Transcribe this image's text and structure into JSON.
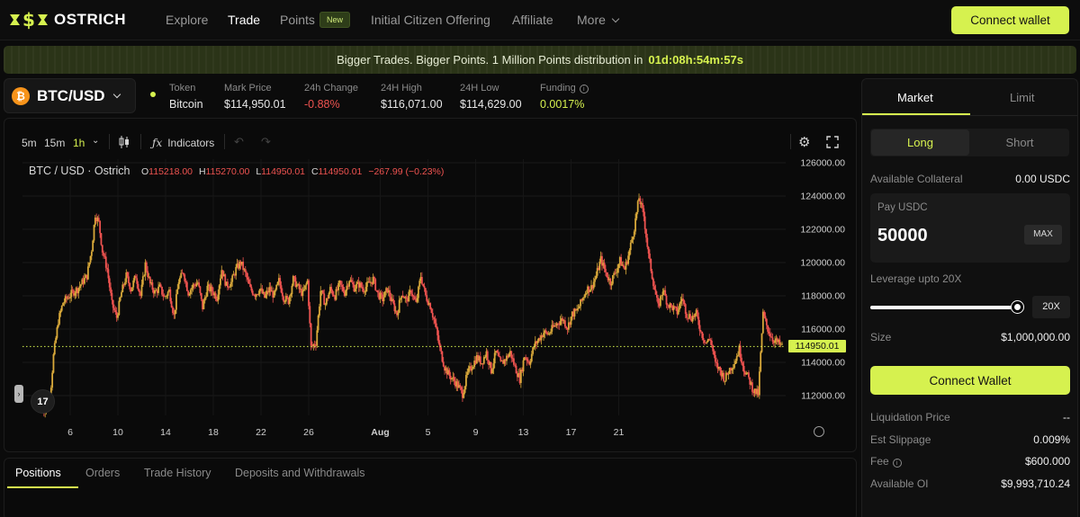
{
  "brand": {
    "name": "OSTRICH"
  },
  "nav": {
    "items": [
      {
        "label": "Explore"
      },
      {
        "label": "Trade"
      },
      {
        "label": "Points"
      },
      {
        "label": "Initial Citizen Offering"
      },
      {
        "label": "Affiliate"
      },
      {
        "label": "More"
      }
    ],
    "points_badge": "New",
    "connect_label": "Connect wallet"
  },
  "banner": {
    "text": "Bigger Trades. Bigger Points. 1 Million Points distribution in",
    "countdown": "01d:08h:54m:57s"
  },
  "market": {
    "pair": "BTC/USD",
    "coin_glyph": "₿",
    "stats": [
      {
        "label": "Token",
        "value": "Bitcoin"
      },
      {
        "label": "Mark Price",
        "value": "$114,950.01"
      },
      {
        "label": "24h Change",
        "value": "-0.88%"
      },
      {
        "label": "24H High",
        "value": "$116,071.00"
      },
      {
        "label": "24H Low",
        "value": "$114,629.00"
      },
      {
        "label": "Funding",
        "value": "0.0017%"
      }
    ]
  },
  "chart_toolbar": {
    "timeframes": [
      "5m",
      "15m",
      "1h"
    ],
    "active_timeframe": "1h",
    "indicators_label": "Indicators",
    "icons": [
      "candles-icon",
      "undo-icon",
      "redo-icon",
      "settings-icon",
      "fullscreen-icon"
    ]
  },
  "chart_legend": {
    "symbol": "BTC / USD · Ostrich",
    "o_label": "O",
    "o": "115218.00",
    "h_label": "H",
    "h": "115270.00",
    "l_label": "L",
    "l": "114950.01",
    "c_label": "C",
    "c": "114950.01",
    "change": "−267.99 (−0.23%)"
  },
  "chart_data": {
    "type": "candlestick",
    "x_tick_labels": [
      "6",
      "10",
      "14",
      "18",
      "22",
      "26",
      "Aug",
      "5",
      "9",
      "13",
      "17",
      "21"
    ],
    "y_tick_labels": [
      "126000.00",
      "124000.00",
      "122000.00",
      "120000.00",
      "118000.00",
      "116000.00",
      "114000.00",
      "112000.00"
    ],
    "ylim": [
      110000,
      127000
    ],
    "last_price_label": "114950.01",
    "last_price": 114950.01,
    "up_color": "#d9a93a",
    "down_color": "#ef5350",
    "close_path": [
      [
        3.6,
        111300
      ],
      [
        4.0,
        111000
      ],
      [
        4.3,
        111800
      ],
      [
        4.6,
        114400
      ],
      [
        5.0,
        116500
      ],
      [
        5.4,
        117600
      ],
      [
        5.8,
        117900
      ],
      [
        6.2,
        118200
      ],
      [
        6.6,
        118400
      ],
      [
        7.0,
        118800
      ],
      [
        7.4,
        119200
      ],
      [
        7.8,
        120800
      ],
      [
        8.1,
        122900
      ],
      [
        8.4,
        122400
      ],
      [
        8.7,
        120700
      ],
      [
        9.1,
        119600
      ],
      [
        9.5,
        117500
      ],
      [
        9.9,
        116700
      ],
      [
        10.3,
        118200
      ],
      [
        10.7,
        119200
      ],
      [
        11.1,
        118400
      ],
      [
        11.5,
        119200
      ],
      [
        11.9,
        118000
      ],
      [
        12.3,
        119900
      ],
      [
        12.7,
        118700
      ],
      [
        13.1,
        118200
      ],
      [
        13.5,
        118500
      ],
      [
        13.9,
        117900
      ],
      [
        14.3,
        118300
      ],
      [
        14.7,
        116800
      ],
      [
        15.1,
        118900
      ],
      [
        15.5,
        119400
      ],
      [
        15.9,
        118200
      ],
      [
        16.3,
        118600
      ],
      [
        16.7,
        118800
      ],
      [
        17.1,
        117300
      ],
      [
        17.5,
        118500
      ],
      [
        17.9,
        118300
      ],
      [
        18.3,
        117900
      ],
      [
        18.7,
        119600
      ],
      [
        19.1,
        118600
      ],
      [
        19.5,
        118800
      ],
      [
        19.9,
        119600
      ],
      [
        20.3,
        120000
      ],
      [
        20.7,
        119300
      ],
      [
        21.1,
        118400
      ],
      [
        21.5,
        118100
      ],
      [
        21.9,
        118400
      ],
      [
        22.3,
        117900
      ],
      [
        22.7,
        118400
      ],
      [
        23.1,
        118000
      ],
      [
        23.5,
        118900
      ],
      [
        23.9,
        117900
      ],
      [
        24.3,
        117700
      ],
      [
        24.7,
        119000
      ],
      [
        25.1,
        118500
      ],
      [
        25.5,
        118100
      ],
      [
        25.9,
        118900
      ],
      [
        26.2,
        114900
      ],
      [
        26.6,
        115200
      ],
      [
        27.0,
        118300
      ],
      [
        27.4,
        117500
      ],
      [
        27.8,
        118400
      ],
      [
        28.2,
        118000
      ],
      [
        28.6,
        118700
      ],
      [
        29.0,
        118200
      ],
      [
        29.4,
        119000
      ],
      [
        29.8,
        118500
      ],
      [
        30.2,
        118700
      ],
      [
        30.6,
        118400
      ],
      [
        31.0,
        118700
      ],
      [
        31.4,
        119000
      ],
      [
        31.8,
        118100
      ],
      [
        32.2,
        117800
      ],
      [
        32.6,
        118400
      ],
      [
        33.0,
        117600
      ],
      [
        33.4,
        116900
      ],
      [
        33.8,
        118200
      ],
      [
        34.2,
        117700
      ],
      [
        34.6,
        118300
      ],
      [
        35.0,
        117500
      ],
      [
        35.4,
        119200
      ],
      [
        35.8,
        118000
      ],
      [
        36.2,
        117400
      ],
      [
        36.6,
        116300
      ],
      [
        37.0,
        114800
      ],
      [
        37.4,
        113700
      ],
      [
        37.8,
        113200
      ],
      [
        38.2,
        112900
      ],
      [
        38.6,
        112500
      ],
      [
        38.9,
        112100
      ],
      [
        39.3,
        113300
      ],
      [
        39.7,
        113800
      ],
      [
        40.1,
        114300
      ],
      [
        40.5,
        114000
      ],
      [
        40.9,
        114600
      ],
      [
        41.3,
        113500
      ],
      [
        41.7,
        114600
      ],
      [
        42.1,
        113900
      ],
      [
        42.5,
        114200
      ],
      [
        42.9,
        114600
      ],
      [
        43.3,
        113700
      ],
      [
        43.7,
        113000
      ],
      [
        44.1,
        114400
      ],
      [
        44.5,
        114000
      ],
      [
        44.9,
        115000
      ],
      [
        45.3,
        115400
      ],
      [
        45.7,
        115800
      ],
      [
        46.1,
        115700
      ],
      [
        46.5,
        116100
      ],
      [
        46.9,
        116400
      ],
      [
        47.3,
        116600
      ],
      [
        47.7,
        116100
      ],
      [
        48.1,
        116900
      ],
      [
        48.5,
        117100
      ],
      [
        48.9,
        117700
      ],
      [
        49.3,
        118400
      ],
      [
        49.7,
        118500
      ],
      [
        50.1,
        119200
      ],
      [
        50.5,
        120200
      ],
      [
        50.9,
        119400
      ],
      [
        51.3,
        118800
      ],
      [
        51.7,
        119400
      ],
      [
        52.1,
        120100
      ],
      [
        52.5,
        119600
      ],
      [
        52.9,
        120700
      ],
      [
        53.3,
        122100
      ],
      [
        53.7,
        123900
      ],
      [
        54.1,
        122800
      ],
      [
        54.5,
        120400
      ],
      [
        54.9,
        118800
      ],
      [
        55.3,
        117300
      ],
      [
        55.7,
        118400
      ],
      [
        56.1,
        117500
      ],
      [
        56.5,
        117300
      ],
      [
        56.9,
        117000
      ],
      [
        57.3,
        117900
      ],
      [
        57.7,
        116900
      ],
      [
        58.1,
        116700
      ],
      [
        58.5,
        116900
      ],
      [
        58.9,
        115800
      ],
      [
        59.3,
        115200
      ],
      [
        59.7,
        115400
      ],
      [
        60.1,
        113900
      ],
      [
        60.5,
        113500
      ],
      [
        60.9,
        113000
      ],
      [
        61.3,
        113600
      ],
      [
        61.7,
        114000
      ],
      [
        62.1,
        114800
      ],
      [
        62.5,
        113600
      ],
      [
        62.9,
        113000
      ],
      [
        63.3,
        112300
      ],
      [
        63.7,
        112100
      ],
      [
        64.1,
        116900
      ],
      [
        64.5,
        116000
      ],
      [
        64.9,
        115400
      ],
      [
        65.3,
        115200
      ],
      [
        65.7,
        114950
      ]
    ]
  },
  "bottom_tabs": [
    "Positions",
    "Orders",
    "Trade History",
    "Deposits and Withdrawals"
  ],
  "order_panel": {
    "tabs": [
      "Market",
      "Limit"
    ],
    "sides": [
      "Long",
      "Short"
    ],
    "available_collateral_label": "Available Collateral",
    "available_collateral": "0.00 USDC",
    "pay_label": "Pay USDC",
    "pay_value": "50000",
    "max_label": "MAX",
    "leverage_label": "Leverage upto 20X",
    "leverage_value": "20X",
    "leverage_fraction": 1.0,
    "size_label": "Size",
    "size_value": "$1,000,000.00",
    "connect_label": "Connect Wallet",
    "liq_label": "Liquidation Price",
    "liq_value": "--",
    "slippage_label": "Est Slippage",
    "slippage_value": "0.009%",
    "fee_label": "Fee",
    "fee_value": "$600.000",
    "oi_label": "Available OI",
    "oi_value": "$9,993,710.24"
  }
}
